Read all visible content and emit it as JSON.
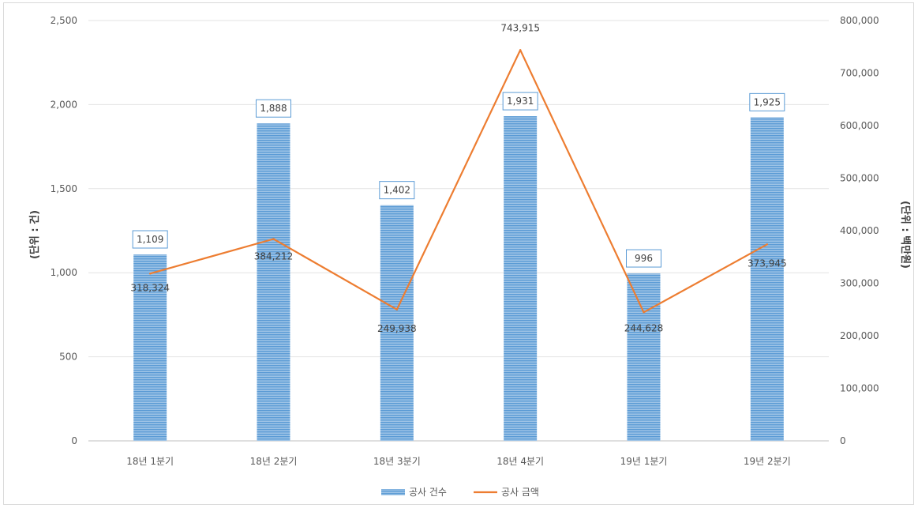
{
  "chart_data": {
    "type": "bar",
    "categories": [
      "18년 1분기",
      "18년 2분기",
      "18년 3분기",
      "18년 4분기",
      "19년 1분기",
      "19년 2분기"
    ],
    "series": [
      {
        "name": "공사 건수",
        "type": "bar",
        "axis": "left",
        "color": "#5b9bd5",
        "values": [
          1109,
          1888,
          1402,
          1931,
          996,
          1925
        ]
      },
      {
        "name": "공사 금액",
        "type": "line",
        "axis": "right",
        "color": "#ed7d31",
        "values": [
          318324,
          384212,
          249938,
          743915,
          244628,
          373945
        ]
      }
    ],
    "bar_labels": [
      "1,109",
      "1,888",
      "1,402",
      "1,931",
      "996",
      "1,925"
    ],
    "line_labels": [
      "318,324",
      "384,212",
      "249,938",
      "743,915",
      "244,628",
      "373,945"
    ],
    "y_left": {
      "label": "(단위 : 건)",
      "ylim": [
        0,
        2500
      ],
      "ticks": [
        "0",
        "500",
        "1,000",
        "1,500",
        "2,000",
        "2,500"
      ]
    },
    "y_right": {
      "label": "(단위 : 백만원)",
      "ylim": [
        0,
        800000
      ],
      "ticks": [
        "0",
        "100,000",
        "200,000",
        "300,000",
        "400,000",
        "500,000",
        "600,000",
        "700,000",
        "800,000"
      ]
    },
    "grid": true,
    "legend": {
      "position": "bottom",
      "items": [
        "공사 건수",
        "공사 금액"
      ]
    }
  }
}
